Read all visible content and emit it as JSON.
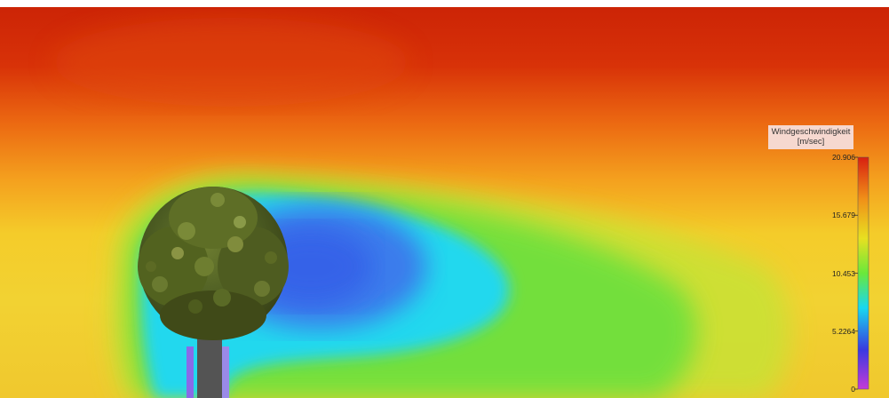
{
  "legend": {
    "title": "Windgeschwindigkeit",
    "unit": "[m/sec]",
    "max": 20.906,
    "min": 0,
    "ticks": [
      {
        "value": 20.906,
        "label": "20.906"
      },
      {
        "value": 15.679,
        "label": "15.679"
      },
      {
        "value": 10.453,
        "label": "10.453"
      },
      {
        "value": 5.2264,
        "label": "5.2264"
      },
      {
        "value": 0,
        "label": "0"
      }
    ],
    "gradient_colors": [
      "#c43ad8",
      "#3a3ae0",
      "#18d8f0",
      "#6ae83a",
      "#e8e020",
      "#f09018",
      "#d82010"
    ]
  },
  "colors": {
    "calm": "#3a6ee8",
    "wake": "#20dcec",
    "transition": "#7de63c",
    "mid": "#f2de28",
    "high": "#f07a14",
    "top": "#cc2406"
  },
  "tree": {
    "trunk_color": "#545454",
    "canopy_color": "#5a6a2a"
  }
}
